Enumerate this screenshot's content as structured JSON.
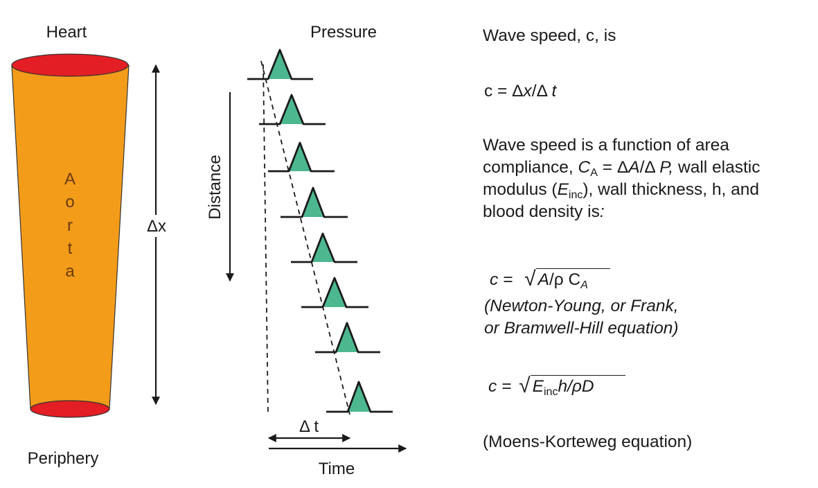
{
  "left": {
    "heart_label": "Heart",
    "periphery_label": "Periphery",
    "aorta_letters": [
      "A",
      "o",
      "r",
      "t",
      "a"
    ],
    "delta_x_label": "Δx"
  },
  "middle": {
    "pressure_label": "Pressure",
    "distance_label": "Distance",
    "delta_t_label": "Δ t",
    "time_label": "Time"
  },
  "right": {
    "line1": "Wave speed, c, is",
    "eq1_prefix": "c = Δ",
    "eq1_x": "x",
    "eq1_mid": "/Δ ",
    "eq1_t": "t",
    "func_l1": "Wave speed is a function of area",
    "func_l2_a": "compliance, ",
    "func_l2_C": "C",
    "func_l2_Csub": "A",
    "func_l2_eq": " = Δ",
    "func_l2_A": "A",
    "func_l2_slash": "/Δ ",
    "func_l2_P": "P,",
    "func_l2_end": " wall elastic",
    "func_l3_a": "modulus (",
    "func_l3_E": "E",
    "func_l3_Esub": "inc",
    "func_l3_end": "), wall thickness, h, and",
    "func_l4": "blood density is",
    "func_l4_colon": ":",
    "eq2_prefix": "c = ",
    "eq2_radical": "√",
    "eq2_A": "A",
    "eq2_rho": "/ρ C",
    "eq2_sub": "A",
    "eq2_name1": "(Newton-Young, or Frank,",
    "eq2_name2": "or Bramwell-Hill equation)",
    "eq3_prefix": "c = ",
    "eq3_radical": "√",
    "eq3_E": "E",
    "eq3_Esub": "inc",
    "eq3_h": "h",
    "eq3_rest": "/ρD",
    "eq3_name": "(Moens-Korteweg equation)"
  },
  "colors": {
    "aorta_fill": "#f39c1a",
    "aorta_caps": "#e31e24",
    "pulse_fill": "#4db890",
    "ink": "#1a1a1a"
  }
}
